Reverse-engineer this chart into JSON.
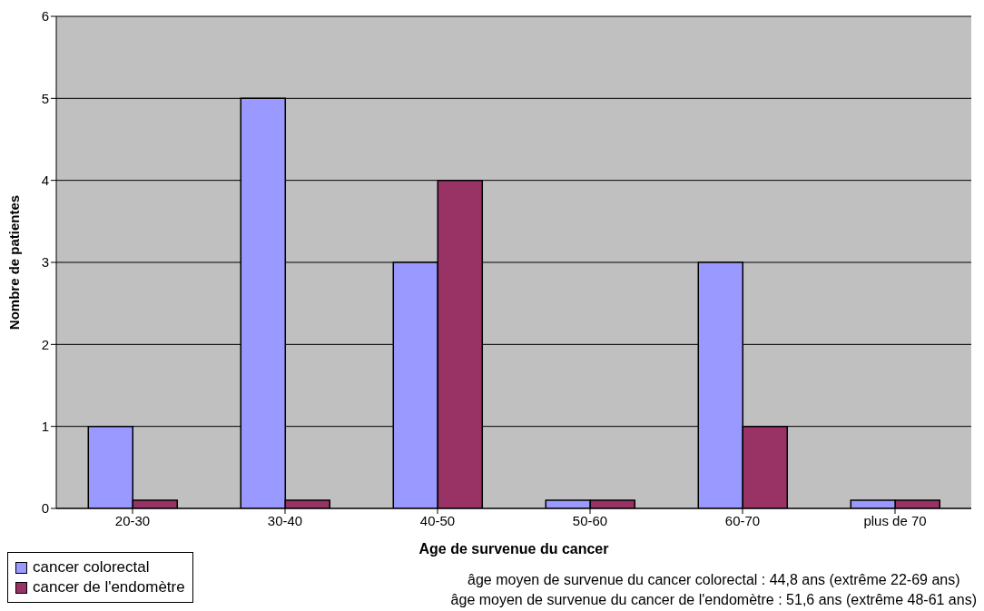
{
  "chart_data": {
    "type": "bar",
    "xlabel": "Age de survenue du cancer",
    "ylabel": "Nombre de patientes",
    "categories": [
      "20-30",
      "30-40",
      "40-50",
      "50-60",
      "60-70",
      "plus de 70"
    ],
    "series": [
      {
        "name": "cancer colorectal",
        "color": "#9999ff",
        "values": [
          1,
          5,
          3,
          0.1,
          3,
          0.1
        ]
      },
      {
        "name": "cancer de l'endomètre",
        "color": "#993366",
        "values": [
          0.1,
          0.1,
          4,
          0.1,
          1,
          0.1
        ]
      }
    ],
    "ylim": [
      0,
      6
    ],
    "yticks": [
      0,
      1,
      2,
      3,
      4,
      5,
      6
    ],
    "grid": "y",
    "legend": "bottom left",
    "annotations": [
      "âge moyen de survenue du cancer colorectal : 44,8 ans (extrême 22-69 ans)",
      "âge moyen de survenue du cancer de l'endomètre : 51,6 ans (extrême 48-61 ans)"
    ]
  }
}
